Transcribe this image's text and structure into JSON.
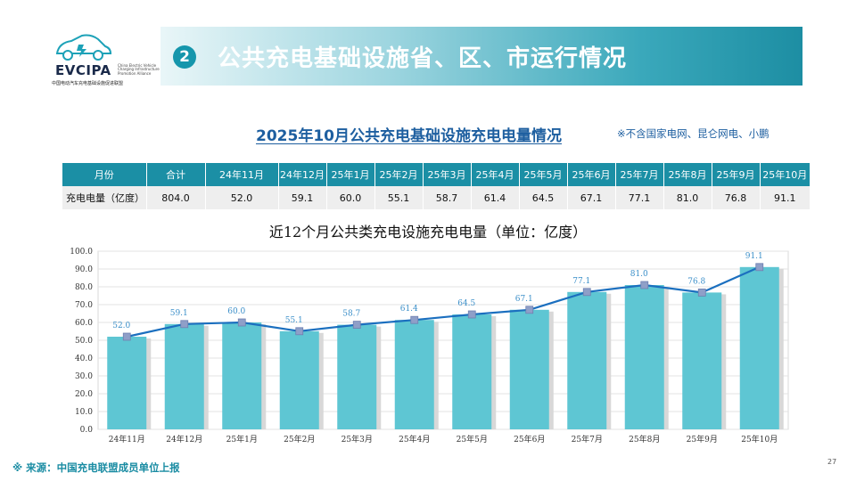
{
  "logo": {
    "brand": "EVCIPA",
    "brand_en": "China Electric Vehicle Charging Infrastructure Promotion Alliance",
    "brand_cn": "中国电动汽车充电基础设施促进联盟"
  },
  "header": {
    "badge": "2",
    "title": "公共充电基础设施省、区、市运行情况"
  },
  "subtitle": "2025年10月公共充电基础设施充电电量情况",
  "subnote": "※不含国家电网、昆仑网电、小鹏",
  "table": {
    "headers": [
      "月份",
      "合计",
      "24年11月",
      "24年12月",
      "25年1月",
      "25年2月",
      "25年3月",
      "25年4月",
      "25年5月",
      "25年6月",
      "25年7月",
      "25年8月",
      "25年9月",
      "25年10月"
    ],
    "row_label": "充电电量（亿度）",
    "values": [
      "804.0",
      "52.0",
      "59.1",
      "60.0",
      "55.1",
      "58.7",
      "61.4",
      "64.5",
      "67.1",
      "77.1",
      "81.0",
      "76.8",
      "91.1"
    ]
  },
  "chart_title": "近12个月公共类充电设施充电电量（单位：亿度）",
  "chart_data": {
    "type": "bar",
    "categories": [
      "24年11月",
      "24年12月",
      "25年1月",
      "25年2月",
      "25年3月",
      "25年4月",
      "25年5月",
      "25年6月",
      "25年7月",
      "25年8月",
      "25年9月",
      "25年10月"
    ],
    "values": [
      52.0,
      59.1,
      60.0,
      55.1,
      58.7,
      61.4,
      64.5,
      67.1,
      77.1,
      81.0,
      76.8,
      91.1
    ],
    "line_overlay": true,
    "ylim": [
      0,
      100
    ],
    "yticks": [
      "0.0",
      "10.0",
      "20.0",
      "30.0",
      "40.0",
      "50.0",
      "60.0",
      "70.0",
      "80.0",
      "90.0",
      "100.0"
    ],
    "grid": true,
    "colors": {
      "bar": "#5ec6d3",
      "bar_shadow": "#d8d8d8",
      "line": "#1b6fbf",
      "marker": "#8f9fc8",
      "label": "#3b8fc9"
    }
  },
  "footer": {
    "source": "※ 来源：中国充电联盟成员单位上报",
    "page": "27"
  }
}
